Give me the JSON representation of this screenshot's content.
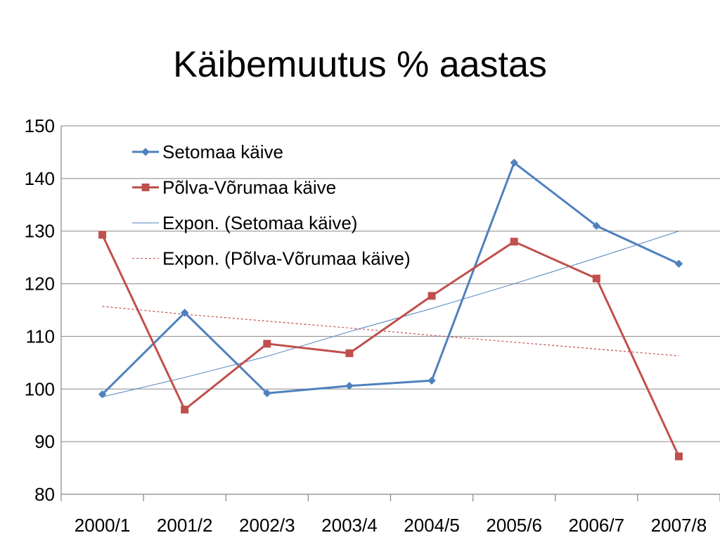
{
  "chart_data": {
    "type": "line",
    "title": "Käibemuutus % aastas",
    "categories": [
      "2000/1",
      "2001/2",
      "2002/3",
      "2003/4",
      "2004/5",
      "2005/6",
      "2006/7",
      "2007/8"
    ],
    "ylim": [
      80,
      150
    ],
    "yticks": [
      80,
      90,
      100,
      110,
      120,
      130,
      140,
      150
    ],
    "grid": true,
    "legend_position": "top-left",
    "series": [
      {
        "name": "Setomaa käive",
        "values": [
          99,
          114.5,
          99.2,
          100.6,
          101.6,
          143,
          131,
          123.8
        ],
        "color": "#4f81bd",
        "marker": "diamond"
      },
      {
        "name": "Põlva-Võrumaa käive",
        "values": [
          129.3,
          96.1,
          108.6,
          106.8,
          117.7,
          128,
          121,
          87.2
        ],
        "color": "#c0504d",
        "marker": "square"
      }
    ],
    "trendlines": [
      {
        "name": "Expon. (Setomaa käive)",
        "type": "exponential",
        "values": [
          98.5,
          102.2,
          106.2,
          110.9,
          115.3,
          120.0,
          124.9,
          130.0
        ],
        "color": "#4f81bd",
        "style": "solid"
      },
      {
        "name": "Expon. (Põlva-Võrumaa käive)",
        "type": "exponential",
        "values": [
          115.7,
          114.2,
          112.9,
          111.6,
          110.2,
          108.9,
          107.6,
          106.3
        ],
        "color": "#c0504d",
        "style": "dotted"
      }
    ]
  }
}
